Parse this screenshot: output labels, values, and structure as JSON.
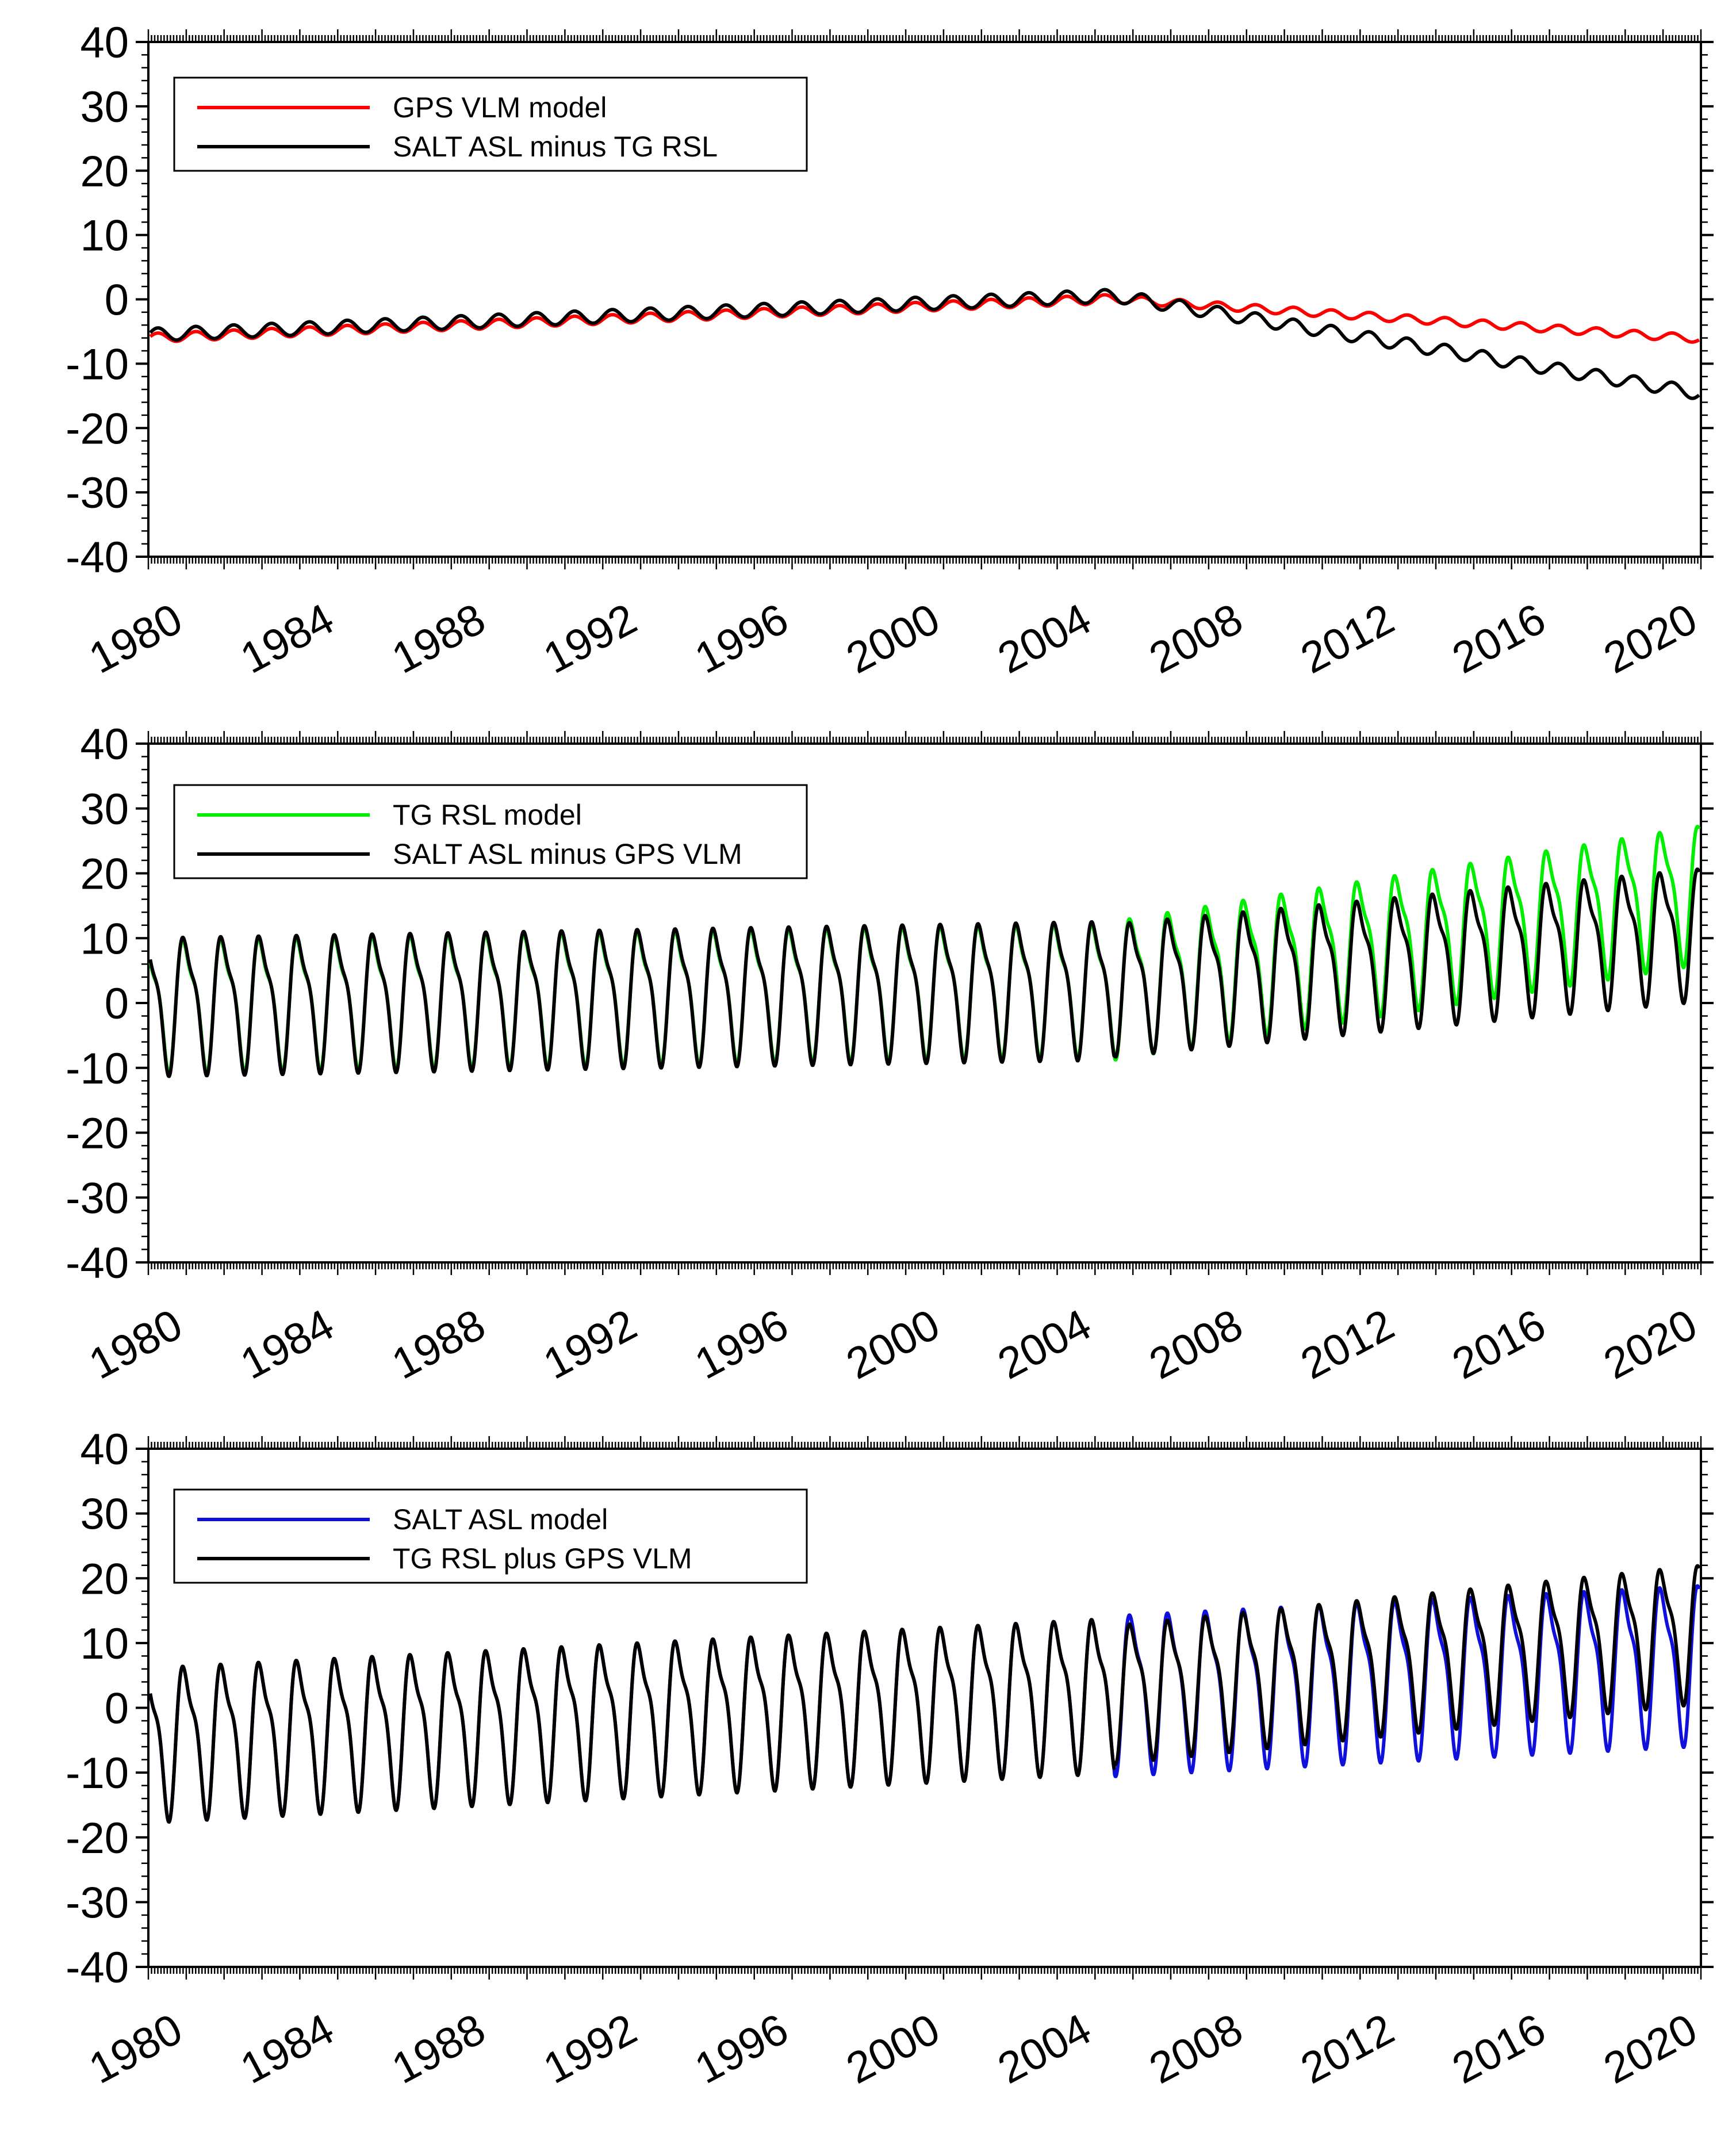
{
  "chart_data": [
    {
      "type": "line",
      "ylim": [
        -40,
        40
      ],
      "xlim": [
        1980,
        2021
      ],
      "yticks": [
        "40",
        "30",
        "20",
        "10",
        "0",
        "-10",
        "-20",
        "-30",
        "-40"
      ],
      "xticks": [
        "1980",
        "1984",
        "1988",
        "1992",
        "1996",
        "2000",
        "2004",
        "2008",
        "2012",
        "2016",
        "2020"
      ],
      "legend_position": "top-left",
      "series": [
        {
          "name": "GPS VLM model",
          "color": "#ff0000",
          "break_year": 2005.5,
          "pre_start": -6.0,
          "pre_slope": 0.238,
          "post_slope": -0.4,
          "amp_pre": 0.7,
          "amp_post": 0.6,
          "amp2_pre": 0.0,
          "amp2_post": 0.0,
          "phase": 0.0
        },
        {
          "name": "SALT ASL minus TG RSL",
          "color": "#000000",
          "break_year": 2005.5,
          "pre_start": -5.5,
          "pre_slope": 0.238,
          "post_slope": -0.98,
          "amp_pre": 1.0,
          "amp_post": 1.0,
          "amp2_pre": 0.0,
          "amp2_post": 0.0,
          "phase": 0.0
        }
      ]
    },
    {
      "type": "line",
      "ylim": [
        -40,
        40
      ],
      "xlim": [
        1980,
        2021
      ],
      "yticks": [
        "40",
        "30",
        "20",
        "10",
        "0",
        "-10",
        "-20",
        "-30",
        "-40"
      ],
      "xticks": [
        "1980",
        "1984",
        "1988",
        "1992",
        "1996",
        "2000",
        "2004",
        "2008",
        "2012",
        "2016",
        "2020"
      ],
      "legend_position": "top-left",
      "series": [
        {
          "name": "TG RSL model",
          "color": "#00ee00",
          "break_year": 2005.5,
          "pre_start": 0.5,
          "pre_slope": 0.1,
          "post_slope": 0.95,
          "amp_pre": 9.0,
          "amp_post": 9.5,
          "amp2_pre": 3.0,
          "amp2_post": 3.0,
          "phase": 0.25
        },
        {
          "name": "SALT ASL minus GPS VLM",
          "color": "#000000",
          "break_year": 2005.5,
          "pre_start": 0.5,
          "pre_slope": 0.1,
          "post_slope": 0.55,
          "amp_pre": 9.5,
          "amp_post": 9.0,
          "amp2_pre": 3.0,
          "amp2_post": 3.0,
          "phase": 0.25
        }
      ]
    },
    {
      "type": "line",
      "ylim": [
        -40,
        40
      ],
      "xlim": [
        1980,
        2021
      ],
      "yticks": [
        "40",
        "30",
        "20",
        "10",
        "0",
        "-10",
        "-20",
        "-30",
        "-40"
      ],
      "xticks": [
        "1980",
        "1984",
        "1988",
        "1992",
        "1996",
        "2000",
        "2004",
        "2008",
        "2012",
        "2016",
        "2020"
      ],
      "legend_position": "top-left",
      "series": [
        {
          "name": "SALT ASL model",
          "color": "#1010dd",
          "break_year": 2005.5,
          "pre_start": -4.5,
          "pre_slope": 0.3,
          "post_slope": 0.3,
          "amp_pre": 10.5,
          "amp_post": 11.0,
          "amp2_pre": 3.5,
          "amp2_post": 3.5,
          "phase": 0.25
        },
        {
          "name": "TG RSL plus GPS VLM",
          "color": "#000000",
          "break_year": 2005.5,
          "pre_start": -4.5,
          "pre_slope": 0.3,
          "post_slope": 0.6,
          "amp_pre": 10.5,
          "amp_post": 9.5,
          "amp2_pre": 3.5,
          "amp2_post": 3.0,
          "phase": 0.25
        }
      ]
    }
  ]
}
